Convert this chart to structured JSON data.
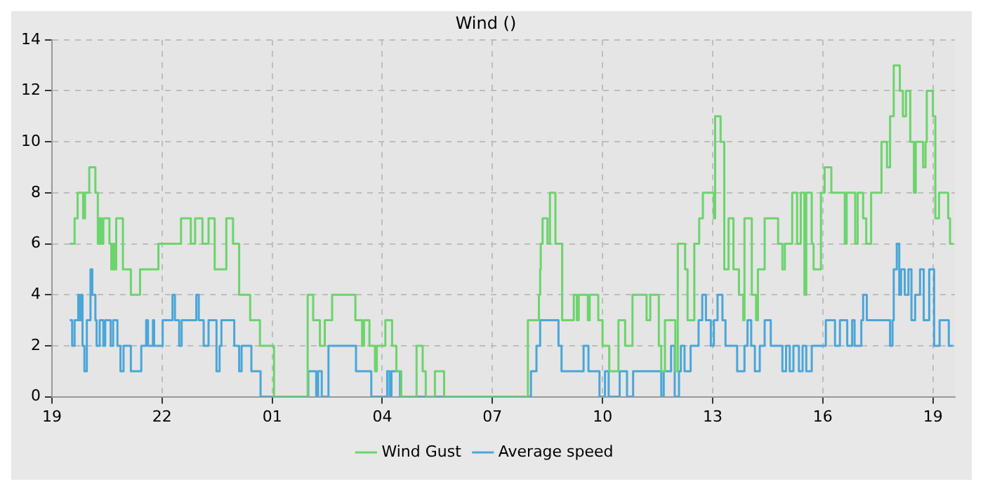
{
  "chart_data": {
    "type": "step",
    "title": "Wind ()",
    "xlim": [
      "--01-01T19:00",
      "--01-02T19:36"
    ],
    "xticks": [
      {
        "value": "--01-01T19:00",
        "label": "19"
      },
      {
        "value": "--01-01T22:00",
        "label": "22"
      },
      {
        "value": "--01-02T01:00",
        "label": "01"
      },
      {
        "value": "--01-02T04:00",
        "label": "04"
      },
      {
        "value": "--01-02T07:00",
        "label": "07"
      },
      {
        "value": "--01-02T10:00",
        "label": "10"
      },
      {
        "value": "--01-02T13:00",
        "label": "13"
      },
      {
        "value": "--01-02T16:00",
        "label": "16"
      },
      {
        "value": "--01-02T19:00",
        "label": "19"
      }
    ],
    "ylim": [
      0,
      14
    ],
    "yticks": [
      0,
      2,
      4,
      6,
      8,
      10,
      12,
      14
    ],
    "grid": true,
    "line_style": "solid",
    "legend": "bottom",
    "series": [
      {
        "name": "Wind Gust",
        "color": "#6cd46c",
        "x": [
          "--01-01T19:29",
          "--01-01T19:37",
          "--01-01T19:42",
          "--01-01T19:51",
          "--01-01T19:54",
          "--01-01T20:01",
          "--01-01T20:11",
          "--01-01T20:15",
          "--01-01T20:18",
          "--01-01T20:21",
          "--01-01T20:24",
          "--01-01T20:34",
          "--01-01T20:37",
          "--01-01T20:40",
          "--01-01T20:42",
          "--01-01T20:45",
          "--01-01T20:56",
          "--01-01T21:09",
          "--01-01T21:24",
          "--01-01T21:54",
          "--01-01T22:31",
          "--01-01T22:47",
          "--01-01T22:54",
          "--01-01T23:06",
          "--01-01T23:16",
          "--01-01T23:26",
          "--01-01T23:45",
          "--01-01T23:56",
          "--01-02T00:06",
          "--01-02T00:24",
          "--01-02T00:40",
          "--01-02T01:03",
          "--01-02T01:58",
          "--01-02T02:07",
          "--01-02T02:18",
          "--01-02T02:26",
          "--01-02T02:38",
          "--01-02T03:16",
          "--01-02T03:27",
          "--01-02T03:30",
          "--01-02T03:39",
          "--01-02T03:48",
          "--01-02T03:51",
          "--01-02T04:05",
          "--01-02T04:16",
          "--01-02T04:23",
          "--01-02T04:31",
          "--01-02T04:56",
          "--01-02T05:06",
          "--01-02T05:11",
          "--01-02T05:26",
          "--01-02T05:41",
          "--01-02T07:58",
          "--01-02T08:16",
          "--01-02T08:18",
          "--01-02T08:19",
          "--01-02T08:22",
          "--01-02T08:30",
          "--01-02T08:34",
          "--01-02T08:43",
          "--01-02T08:54",
          "--01-02T09:13",
          "--01-02T09:18",
          "--01-02T09:21",
          "--01-02T09:36",
          "--01-02T09:39",
          "--01-02T09:53",
          "--01-02T10:00",
          "--01-02T10:11",
          "--01-02T10:26",
          "--01-02T10:37",
          "--01-02T10:49",
          "--01-02T11:12",
          "--01-02T11:18",
          "--01-02T11:32",
          "--01-02T11:36",
          "--01-02T11:42",
          "--01-02T11:59",
          "--01-02T12:03",
          "--01-02T12:15",
          "--01-02T12:19",
          "--01-02T12:30",
          "--01-02T12:38",
          "--01-02T12:44",
          "--01-02T13:02",
          "--01-02T13:04",
          "--01-02T13:13",
          "--01-02T13:19",
          "--01-02T13:26",
          "--01-02T13:34",
          "--01-02T13:43",
          "--01-02T13:50",
          "--01-02T13:52",
          "--01-02T14:04",
          "--01-02T14:11",
          "--01-02T14:14",
          "--01-02T14:25",
          "--01-02T14:47",
          "--01-02T14:54",
          "--01-02T14:58",
          "--01-02T15:10",
          "--01-02T15:18",
          "--01-02T15:24",
          "--01-02T15:30",
          "--01-02T15:33",
          "--01-02T15:42",
          "--01-02T15:45",
          "--01-02T15:57",
          "--01-02T16:03",
          "--01-02T16:14",
          "--01-02T16:36",
          "--01-02T16:39",
          "--01-02T16:53",
          "--01-02T16:57",
          "--01-02T17:06",
          "--01-02T17:11",
          "--01-02T17:19",
          "--01-02T17:36",
          "--01-02T17:45",
          "--01-02T17:50",
          "--01-02T17:56",
          "--01-02T18:06",
          "--01-02T18:11",
          "--01-02T18:16",
          "--01-02T18:23",
          "--01-02T18:29",
          "--01-02T18:32",
          "--01-02T18:44",
          "--01-02T18:48",
          "--01-02T18:50",
          "--01-02T19:00",
          "--01-02T19:04",
          "--01-02T19:10",
          "--01-02T19:25",
          "--01-02T19:28",
          "--01-02T19:33"
        ],
        "values": [
          6,
          7,
          8,
          7,
          8,
          9,
          8,
          6,
          7,
          6,
          7,
          6,
          5,
          6,
          5,
          7,
          5,
          4,
          5,
          6,
          7,
          6,
          7,
          6,
          7,
          5,
          7,
          6,
          4,
          3,
          2,
          0,
          4,
          3,
          2,
          3,
          4,
          3,
          2,
          3,
          2,
          1,
          2,
          3,
          2,
          1,
          0,
          2,
          1,
          0,
          1,
          0,
          3,
          4,
          5,
          6,
          7,
          6,
          8,
          6,
          3,
          4,
          3,
          4,
          3,
          4,
          3,
          2,
          1,
          3,
          2,
          4,
          3,
          4,
          2,
          1,
          3,
          1,
          6,
          5,
          3,
          6,
          7,
          8,
          7,
          11,
          10,
          5,
          7,
          5,
          4,
          3,
          7,
          4,
          3,
          5,
          7,
          6,
          5,
          6,
          8,
          6,
          8,
          4,
          8,
          6,
          5,
          8,
          9,
          8,
          6,
          8,
          6,
          8,
          7,
          6,
          8,
          10,
          9,
          11,
          13,
          12,
          11,
          12,
          10,
          8,
          10,
          9,
          10,
          12,
          11,
          7,
          8,
          7,
          6,
          6
        ]
      },
      {
        "name": "Average speed",
        "color": "#4ba6d8",
        "x": [
          "--01-01T19:29",
          "--01-01T19:33",
          "--01-01T19:37",
          "--01-01T19:43",
          "--01-01T19:45",
          "--01-01T19:48",
          "--01-01T19:50",
          "--01-01T19:53",
          "--01-01T19:57",
          "--01-01T20:03",
          "--01-01T20:06",
          "--01-01T20:11",
          "--01-01T20:13",
          "--01-01T20:18",
          "--01-01T20:24",
          "--01-01T20:27",
          "--01-01T20:36",
          "--01-01T20:40",
          "--01-01T20:47",
          "--01-01T20:52",
          "--01-01T20:57",
          "--01-01T21:09",
          "--01-01T21:26",
          "--01-01T21:34",
          "--01-01T21:37",
          "--01-01T21:45",
          "--01-01T21:47",
          "--01-01T22:01",
          "--01-01T22:17",
          "--01-01T22:21",
          "--01-01T22:28",
          "--01-01T22:32",
          "--01-01T22:56",
          "--01-01T23:00",
          "--01-01T23:08",
          "--01-01T23:16",
          "--01-01T23:29",
          "--01-01T23:34",
          "--01-01T23:37",
          "--01-01T23:58",
          "--01-02T00:06",
          "--01-02T00:10",
          "--01-02T00:26",
          "--01-02T00:41",
          "--01-02T01:59",
          "--01-02T02:12",
          "--01-02T02:15",
          "--01-02T02:21",
          "--01-02T02:32",
          "--01-02T03:17",
          "--01-02T03:42",
          "--01-02T04:08",
          "--01-02T04:12",
          "--01-02T04:15",
          "--01-02T04:29",
          "--01-02T08:03",
          "--01-02T08:12",
          "--01-02T08:18",
          "--01-02T08:48",
          "--01-02T08:53",
          "--01-02T09:29",
          "--01-02T09:37",
          "--01-02T09:55",
          "--01-02T10:04",
          "--01-02T10:10",
          "--01-02T10:28",
          "--01-02T10:40",
          "--01-02T10:50",
          "--01-02T11:36",
          "--01-02T11:40",
          "--01-02T11:52",
          "--01-02T11:58",
          "--01-02T12:05",
          "--01-02T12:08",
          "--01-02T12:14",
          "--01-02T12:24",
          "--01-02T12:37",
          "--01-02T12:43",
          "--01-02T12:49",
          "--01-02T12:57",
          "--01-02T13:02",
          "--01-02T13:08",
          "--01-02T13:16",
          "--01-02T13:21",
          "--01-02T13:40",
          "--01-02T13:52",
          "--01-02T13:57",
          "--01-02T14:03",
          "--01-02T14:09",
          "--01-02T14:17",
          "--01-02T14:25",
          "--01-02T14:35",
          "--01-02T14:54",
          "--01-02T15:00",
          "--01-02T15:06",
          "--01-02T15:12",
          "--01-02T15:21",
          "--01-02T15:27",
          "--01-02T15:33",
          "--01-02T15:42",
          "--01-02T16:05",
          "--01-02T16:20",
          "--01-02T16:28",
          "--01-02T16:40",
          "--01-02T16:48",
          "--01-02T16:52",
          "--01-02T17:03",
          "--01-02T17:06",
          "--01-02T17:12",
          "--01-02T17:50",
          "--01-02T17:54",
          "--01-02T17:56",
          "--01-02T18:01",
          "--01-02T18:05",
          "--01-02T18:08",
          "--01-02T18:14",
          "--01-02T18:20",
          "--01-02T18:25",
          "--01-02T18:31",
          "--01-02T18:39",
          "--01-02T18:45",
          "--01-02T18:54",
          "--01-02T19:02",
          "--01-02T19:11",
          "--01-02T19:26",
          "--01-02T19:33"
        ],
        "values": [
          3,
          2,
          3,
          4,
          3,
          4,
          2,
          1,
          3,
          5,
          4,
          3,
          2,
          3,
          2,
          3,
          2,
          3,
          2,
          1,
          2,
          1,
          2,
          3,
          2,
          3,
          2,
          3,
          4,
          3,
          2,
          3,
          4,
          3,
          2,
          3,
          1,
          2,
          3,
          2,
          1,
          2,
          1,
          0,
          1,
          0,
          1,
          0,
          2,
          1,
          0,
          1,
          0,
          1,
          0,
          1,
          2,
          3,
          2,
          1,
          2,
          1,
          0,
          1,
          0,
          1,
          0,
          1,
          0,
          1,
          2,
          0,
          1,
          2,
          1,
          2,
          3,
          4,
          3,
          2,
          3,
          4,
          3,
          2,
          1,
          2,
          3,
          2,
          1,
          2,
          3,
          2,
          1,
          2,
          1,
          2,
          1,
          2,
          1,
          2,
          3,
          2,
          3,
          2,
          3,
          2,
          3,
          4,
          3,
          2,
          3,
          5,
          6,
          4,
          5,
          4,
          5,
          3,
          4,
          5,
          3,
          5,
          2,
          3,
          2,
          2
        ]
      }
    ]
  }
}
